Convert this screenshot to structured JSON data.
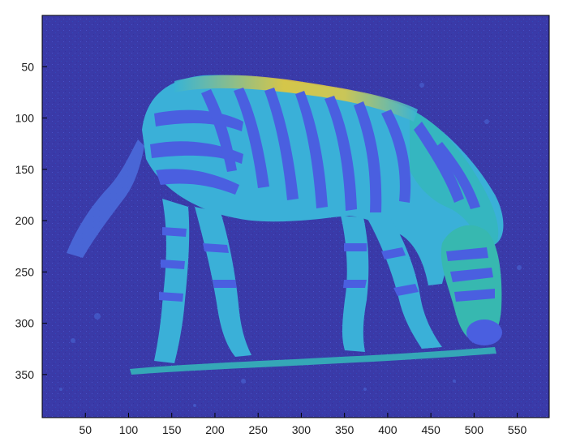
{
  "figure": {
    "type": "image-plot",
    "image_description_colormap": "parula",
    "background_color": "#3a3aa8",
    "axes": {
      "xlim": [
        0,
        587
      ],
      "ylim": [
        392,
        0
      ],
      "x_ticks": [
        50,
        100,
        150,
        200,
        250,
        300,
        350,
        400,
        450,
        500,
        550
      ],
      "y_ticks": [
        50,
        100,
        150,
        200,
        250,
        300,
        350
      ],
      "x_tick_labels": [
        "50",
        "100",
        "150",
        "200",
        "250",
        "300",
        "350",
        "400",
        "450",
        "500",
        "550"
      ],
      "y_tick_labels": [
        "50",
        "100",
        "150",
        "200",
        "250",
        "300",
        "350"
      ]
    },
    "colors": {
      "dark_blue": "#3b3fb1",
      "stripe_blue": "#4a5fe0",
      "cyan": "#38b4d4",
      "teal": "#2cc0a8",
      "yellow": "#e6c83a",
      "axis": "#000000"
    }
  }
}
